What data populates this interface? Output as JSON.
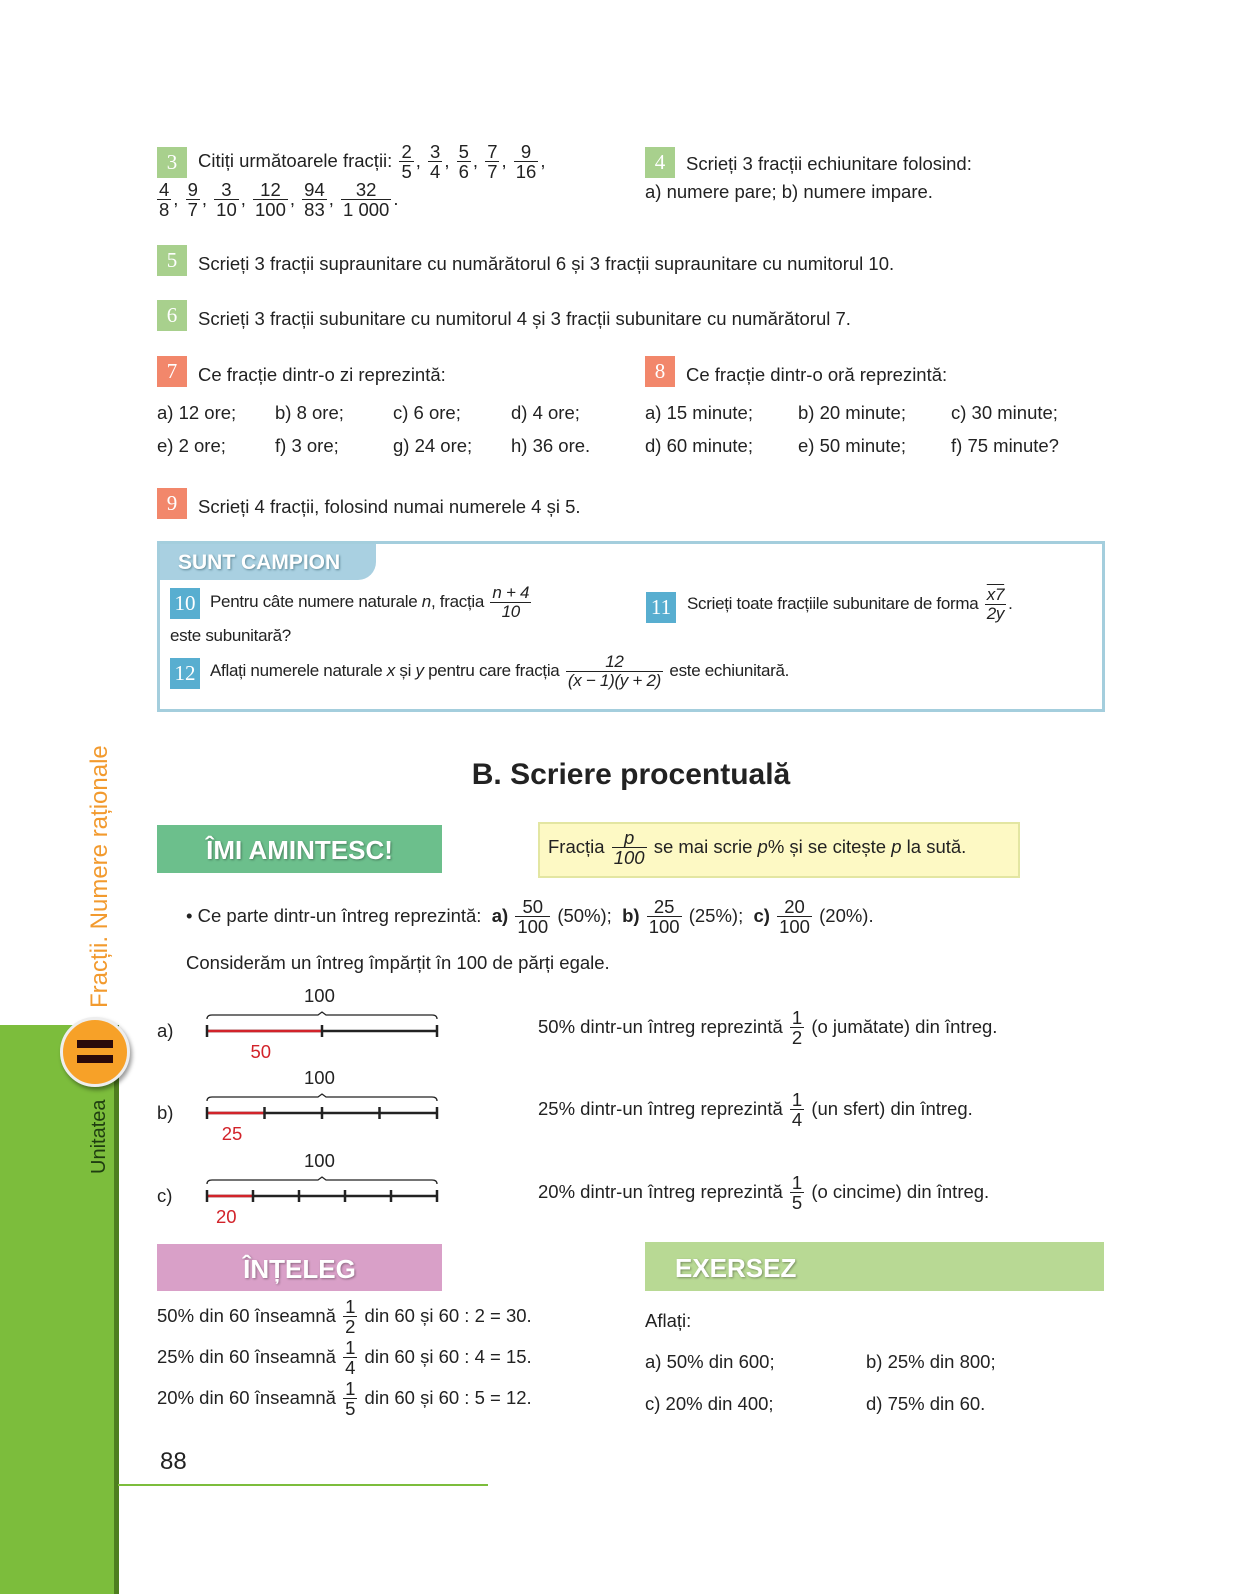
{
  "sidebar": {
    "unit_label": "Unitatea",
    "unit_number": "II",
    "chapter_title": "Fracții. Numere raționale",
    "colors": {
      "bar": "#7cbd3c",
      "badge": "#f7a128",
      "title": "#f29a2e"
    }
  },
  "ex3": {
    "num": "3",
    "line1": [
      "Citiți următoarele fracții: ",
      {
        "n": "2",
        "d": "5"
      },
      ", ",
      {
        "n": "3",
        "d": "4"
      },
      ", ",
      {
        "n": "5",
        "d": "6"
      },
      ", ",
      {
        "n": "7",
        "d": "7"
      },
      ", ",
      {
        "n": "9",
        "d": "16"
      },
      ","
    ],
    "line2": [
      {
        "n": "4",
        "d": "8"
      },
      ", ",
      {
        "n": "9",
        "d": "7"
      },
      ", ",
      {
        "n": "3",
        "d": "10"
      },
      ", ",
      {
        "n": "12",
        "d": "100"
      },
      ", ",
      {
        "n": "94",
        "d": "83"
      },
      ", ",
      {
        "n": "32",
        "d": "1 000"
      },
      "."
    ]
  },
  "ex4": {
    "num": "4",
    "line1": "Scrieți 3 fracții echiunitare folosind:",
    "line2": "a) numere pare; b) numere impare."
  },
  "ex5": {
    "num": "5",
    "text": "Scrieți 3 fracții supraunitare cu numărătorul 6 și 3 fracții supraunitare cu numitorul 10."
  },
  "ex6": {
    "num": "6",
    "text": "Scrieți 3 fracții subunitare cu numitorul 4 și 3 fracții subunitare cu numărătorul 7."
  },
  "ex7": {
    "num": "7",
    "title": "Ce fracție dintr-o zi reprezintă:",
    "rows": [
      [
        "a) 12 ore;",
        "b) 8 ore;",
        "c) 6 ore;",
        "d) 4 ore;"
      ],
      [
        "e) 2 ore;",
        "f) 3 ore;",
        "g) 24 ore;",
        "h) 36 ore."
      ]
    ]
  },
  "ex8": {
    "num": "8",
    "title": "Ce fracție dintr-o oră reprezintă:",
    "rows": [
      [
        "a) 15 minute;",
        "b) 20 minute;",
        "c) 30 minute;"
      ],
      [
        "d) 60 minute;",
        "e) 50 minute;",
        "f) 75 minute?"
      ]
    ]
  },
  "ex9": {
    "num": "9",
    "text": "Scrieți 4 fracții, folosind numai numerele 4 și 5."
  },
  "campion": {
    "title": "SUNT CAMPION",
    "ex10": {
      "num": "10",
      "line1": [
        "Pentru câte numere naturale ",
        {
          "i": "n"
        },
        ", fracția ",
        {
          "n": "n + 4",
          "d": "10",
          "it": true
        }
      ],
      "line2": "este subunitară?"
    },
    "ex11": {
      "num": "11",
      "line1": [
        "Scrieți toate fracțiile subunitare de forma ",
        {
          "n": "x7",
          "d": "2y",
          "it": true,
          "over": true
        },
        "."
      ]
    },
    "ex12": {
      "num": "12",
      "line1": [
        "Aflați numerele naturale ",
        {
          "i": "x"
        },
        " și ",
        {
          "i": "y"
        },
        " pentru care fracția ",
        {
          "n": "12",
          "d": "(x − 1)(y + 2)",
          "it": true
        },
        " este echiunitară."
      ]
    }
  },
  "section_title": "B. Scriere procentuală",
  "remember": {
    "title": "ÎMI AMINTESC!",
    "note": [
      "Fracția ",
      {
        "n": "p",
        "d": "100",
        "it": true
      },
      " se mai scrie ",
      {
        "i": "p"
      },
      "% și se citește ",
      {
        "i": "p"
      },
      " la sută."
    ],
    "bullet": [
      "• Ce parte dintr-un întreg reprezintă:  ",
      {
        "b": "a)"
      },
      " ",
      {
        "n": "50",
        "d": "100"
      },
      " (50%);  ",
      {
        "b": "b)"
      },
      " ",
      {
        "n": "25",
        "d": "100"
      },
      " (25%);  ",
      {
        "b": "c)"
      },
      " ",
      {
        "n": "20",
        "d": "100"
      },
      " (20%)."
    ],
    "intro": "Considerăm un întreg împărțit în 100 de părți egale."
  },
  "number_lines": [
    {
      "label": "a)",
      "total": "100",
      "part": "50",
      "divisions": 2,
      "desc": [
        "50% dintr-un întreg reprezintă ",
        {
          "n": "1",
          "d": "2"
        },
        " (o jumătate) din întreg."
      ]
    },
    {
      "label": "b)",
      "total": "100",
      "part": "25",
      "divisions": 4,
      "desc": [
        "25% dintr-un întreg reprezintă ",
        {
          "n": "1",
          "d": "4"
        },
        " (un sfert) din întreg."
      ]
    },
    {
      "label": "c)",
      "total": "100",
      "part": "20",
      "divisions": 5,
      "desc": [
        "20% dintr-un întreg reprezintă ",
        {
          "n": "1",
          "d": "5"
        },
        " (o cincime) din întreg."
      ]
    }
  ],
  "understand": {
    "title": "ÎNȚELEG",
    "lines": [
      [
        "50% din 60 înseamnă ",
        {
          "n": "1",
          "d": "2"
        },
        " din 60 și 60 : 2 = 30."
      ],
      [
        "25% din 60 înseamnă ",
        {
          "n": "1",
          "d": "4"
        },
        " din 60 și 60 : 4 = 15."
      ],
      [
        "20% din 60 înseamnă ",
        {
          "n": "1",
          "d": "5"
        },
        " din 60 și 60 : 5 = 12."
      ]
    ]
  },
  "practice": {
    "title": "EXERSEZ",
    "prompt": "Aflați:",
    "items": [
      "a) 50% din 600;",
      "b) 25% din 800;",
      "c) 20% din 400;",
      "d) 75% din 60."
    ]
  },
  "page_number": "88",
  "colors": {
    "green_badge": "#a8d08d",
    "orange_badge": "#f2876b",
    "blue_badge": "#58aed0",
    "remember": "#6cbf8c",
    "understand": "#d9a0c8",
    "practice": "#b8d994",
    "note_bg": "#fdf9c4",
    "highlight_red": "#d2232a"
  }
}
